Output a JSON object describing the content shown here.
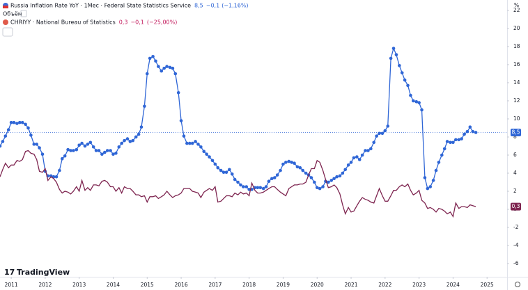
{
  "chart_data": {
    "type": "line",
    "header": {
      "volume": "Объём"
    },
    "y_unit": "%",
    "logo": "TradingView",
    "x": [
      2010.67,
      2010.75,
      2010.83,
      2010.92,
      2011.0,
      2011.08,
      2011.17,
      2011.25,
      2011.33,
      2011.42,
      2011.5,
      2011.58,
      2011.67,
      2011.75,
      2011.83,
      2011.92,
      2012.0,
      2012.08,
      2012.17,
      2012.25,
      2012.33,
      2012.42,
      2012.5,
      2012.58,
      2012.67,
      2012.75,
      2012.83,
      2012.92,
      2013.0,
      2013.08,
      2013.17,
      2013.25,
      2013.33,
      2013.42,
      2013.5,
      2013.58,
      2013.67,
      2013.75,
      2013.83,
      2013.92,
      2014.0,
      2014.08,
      2014.17,
      2014.25,
      2014.33,
      2014.42,
      2014.5,
      2014.58,
      2014.67,
      2014.75,
      2014.83,
      2014.92,
      2015.0,
      2015.08,
      2015.17,
      2015.25,
      2015.33,
      2015.42,
      2015.5,
      2015.58,
      2015.67,
      2015.75,
      2015.83,
      2015.92,
      2016.0,
      2016.08,
      2016.17,
      2016.25,
      2016.33,
      2016.42,
      2016.5,
      2016.58,
      2016.67,
      2016.75,
      2016.83,
      2016.92,
      2017.0,
      2017.08,
      2017.17,
      2017.25,
      2017.33,
      2017.42,
      2017.5,
      2017.58,
      2017.67,
      2017.75,
      2017.83,
      2017.92,
      2018.0,
      2018.08,
      2018.17,
      2018.25,
      2018.33,
      2018.42,
      2018.5,
      2018.58,
      2018.67,
      2018.75,
      2018.83,
      2018.92,
      2019.0,
      2019.08,
      2019.17,
      2019.25,
      2019.33,
      2019.42,
      2019.5,
      2019.58,
      2019.67,
      2019.75,
      2019.83,
      2019.92,
      2020.0,
      2020.08,
      2020.17,
      2020.25,
      2020.33,
      2020.42,
      2020.5,
      2020.58,
      2020.67,
      2020.75,
      2020.83,
      2020.92,
      2021.0,
      2021.08,
      2021.17,
      2021.25,
      2021.33,
      2021.42,
      2021.5,
      2021.58,
      2021.67,
      2021.75,
      2021.83,
      2021.92,
      2022.0,
      2022.08,
      2022.17,
      2022.25,
      2022.33,
      2022.42,
      2022.5,
      2022.58,
      2022.67,
      2022.75,
      2022.83,
      2022.92,
      2023.0,
      2023.08,
      2023.17,
      2023.25,
      2023.33,
      2023.42,
      2023.5,
      2023.58,
      2023.67,
      2023.75,
      2023.83,
      2023.92,
      2024.0,
      2024.08,
      2024.17,
      2024.25,
      2024.33,
      2024.42,
      2024.5,
      2024.58,
      2024.67
    ],
    "series": [
      {
        "name": "Russia Inflation Rate YoY · 1Мес · Federal State Statistics Service",
        "color": "#2f66d6",
        "markers": true,
        "header_value": "8,5",
        "change": "−0,1",
        "change_pct": "(−1,16%)",
        "values": [
          7.0,
          7.5,
          8.1,
          8.8,
          9.6,
          9.6,
          9.5,
          9.6,
          9.6,
          9.4,
          9.0,
          8.2,
          7.2,
          7.2,
          6.8,
          6.1,
          4.2,
          3.7,
          3.7,
          3.6,
          3.6,
          4.3,
          5.6,
          5.9,
          6.6,
          6.5,
          6.5,
          6.6,
          7.1,
          7.3,
          7.0,
          7.2,
          7.4,
          6.9,
          6.5,
          6.5,
          6.1,
          6.3,
          6.5,
          6.5,
          6.1,
          6.2,
          6.9,
          7.3,
          7.6,
          7.8,
          7.5,
          7.6,
          8.0,
          8.3,
          9.1,
          11.4,
          15.0,
          16.7,
          16.9,
          16.4,
          15.8,
          15.3,
          15.6,
          15.8,
          15.7,
          15.6,
          15.0,
          12.9,
          9.8,
          8.1,
          7.3,
          7.3,
          7.3,
          7.5,
          7.2,
          6.9,
          6.4,
          6.1,
          5.8,
          5.4,
          5.0,
          4.6,
          4.3,
          4.1,
          4.1,
          4.4,
          3.9,
          3.3,
          3.0,
          2.7,
          2.5,
          2.5,
          2.2,
          2.2,
          2.4,
          2.4,
          2.4,
          2.3,
          2.5,
          3.1,
          3.4,
          3.5,
          3.8,
          4.3,
          5.0,
          5.2,
          5.3,
          5.2,
          5.1,
          4.7,
          4.6,
          4.3,
          4.0,
          3.8,
          3.5,
          3.0,
          2.4,
          2.3,
          2.5,
          3.1,
          3.0,
          3.2,
          3.4,
          3.6,
          3.7,
          4.0,
          4.4,
          4.9,
          5.2,
          5.7,
          5.8,
          5.5,
          6.0,
          6.5,
          6.5,
          6.7,
          7.4,
          8.1,
          8.4,
          8.4,
          8.7,
          9.2,
          16.7,
          17.8,
          17.1,
          15.9,
          15.1,
          14.3,
          13.7,
          12.6,
          12.0,
          11.9,
          11.8,
          11.0,
          3.5,
          2.3,
          2.5,
          3.2,
          4.3,
          5.2,
          6.0,
          6.7,
          7.5,
          7.4,
          7.4,
          7.7,
          7.7,
          7.8,
          8.3,
          8.6,
          9.1,
          8.6,
          8.5
        ]
      },
      {
        "name": "CHRIYY · National Bureau of Statistics",
        "color": "#7e2550",
        "markers": false,
        "header_value": "0,3",
        "change": "−0,1",
        "change_pct": "(−25,00%)",
        "values": [
          3.6,
          4.4,
          5.1,
          4.6,
          4.9,
          4.9,
          5.4,
          5.3,
          5.5,
          6.4,
          6.5,
          6.2,
          6.1,
          5.5,
          4.2,
          4.1,
          4.5,
          3.2,
          3.6,
          3.4,
          3.0,
          2.2,
          1.8,
          2.0,
          1.9,
          1.7,
          2.0,
          2.5,
          2.0,
          3.2,
          2.1,
          2.4,
          2.1,
          2.7,
          2.7,
          2.6,
          3.1,
          3.2,
          3.0,
          2.5,
          2.5,
          2.0,
          2.4,
          1.8,
          2.5,
          2.3,
          2.3,
          2.0,
          1.6,
          1.6,
          1.4,
          1.5,
          0.8,
          1.4,
          1.4,
          1.5,
          1.2,
          1.4,
          1.6,
          2.0,
          1.6,
          1.3,
          1.5,
          1.6,
          1.8,
          2.3,
          2.3,
          2.3,
          2.0,
          1.9,
          1.8,
          1.3,
          1.9,
          2.1,
          2.3,
          2.1,
          2.5,
          0.8,
          0.9,
          1.2,
          1.5,
          1.5,
          1.4,
          1.8,
          1.6,
          1.9,
          1.7,
          1.8,
          1.5,
          2.9,
          2.1,
          1.8,
          1.8,
          1.9,
          2.1,
          2.3,
          2.5,
          2.5,
          2.2,
          1.9,
          1.7,
          1.5,
          2.3,
          2.5,
          2.7,
          2.7,
          2.8,
          2.8,
          3.0,
          3.8,
          4.5,
          4.5,
          5.4,
          5.2,
          4.3,
          3.3,
          2.4,
          2.5,
          2.7,
          2.4,
          1.7,
          0.5,
          -0.5,
          0.2,
          -0.3,
          -0.2,
          0.4,
          0.9,
          1.3,
          1.1,
          1.0,
          0.8,
          0.7,
          1.5,
          2.3,
          1.5,
          0.9,
          0.9,
          1.5,
          2.1,
          2.1,
          2.5,
          2.7,
          2.5,
          2.8,
          2.1,
          1.6,
          1.8,
          2.1,
          1.0,
          0.7,
          0.1,
          0.2,
          0.0,
          -0.3,
          0.1,
          0.0,
          -0.2,
          -0.5,
          -0.3,
          -0.8,
          0.7,
          0.1,
          0.3,
          0.3,
          0.2,
          0.5,
          0.4,
          0.3
        ]
      }
    ],
    "xlim": [
      2010.67,
      2025.59
    ],
    "xticks": [
      2011,
      2012,
      2013,
      2014,
      2015,
      2016,
      2017,
      2018,
      2019,
      2020,
      2021,
      2022,
      2023,
      2024,
      2025
    ],
    "ylim": [
      -7.46,
      23.15
    ],
    "yticks": [
      22,
      20,
      18,
      16,
      14,
      12,
      10,
      8,
      6,
      4,
      2,
      0,
      -2,
      -4,
      -6
    ],
    "grid": false
  }
}
